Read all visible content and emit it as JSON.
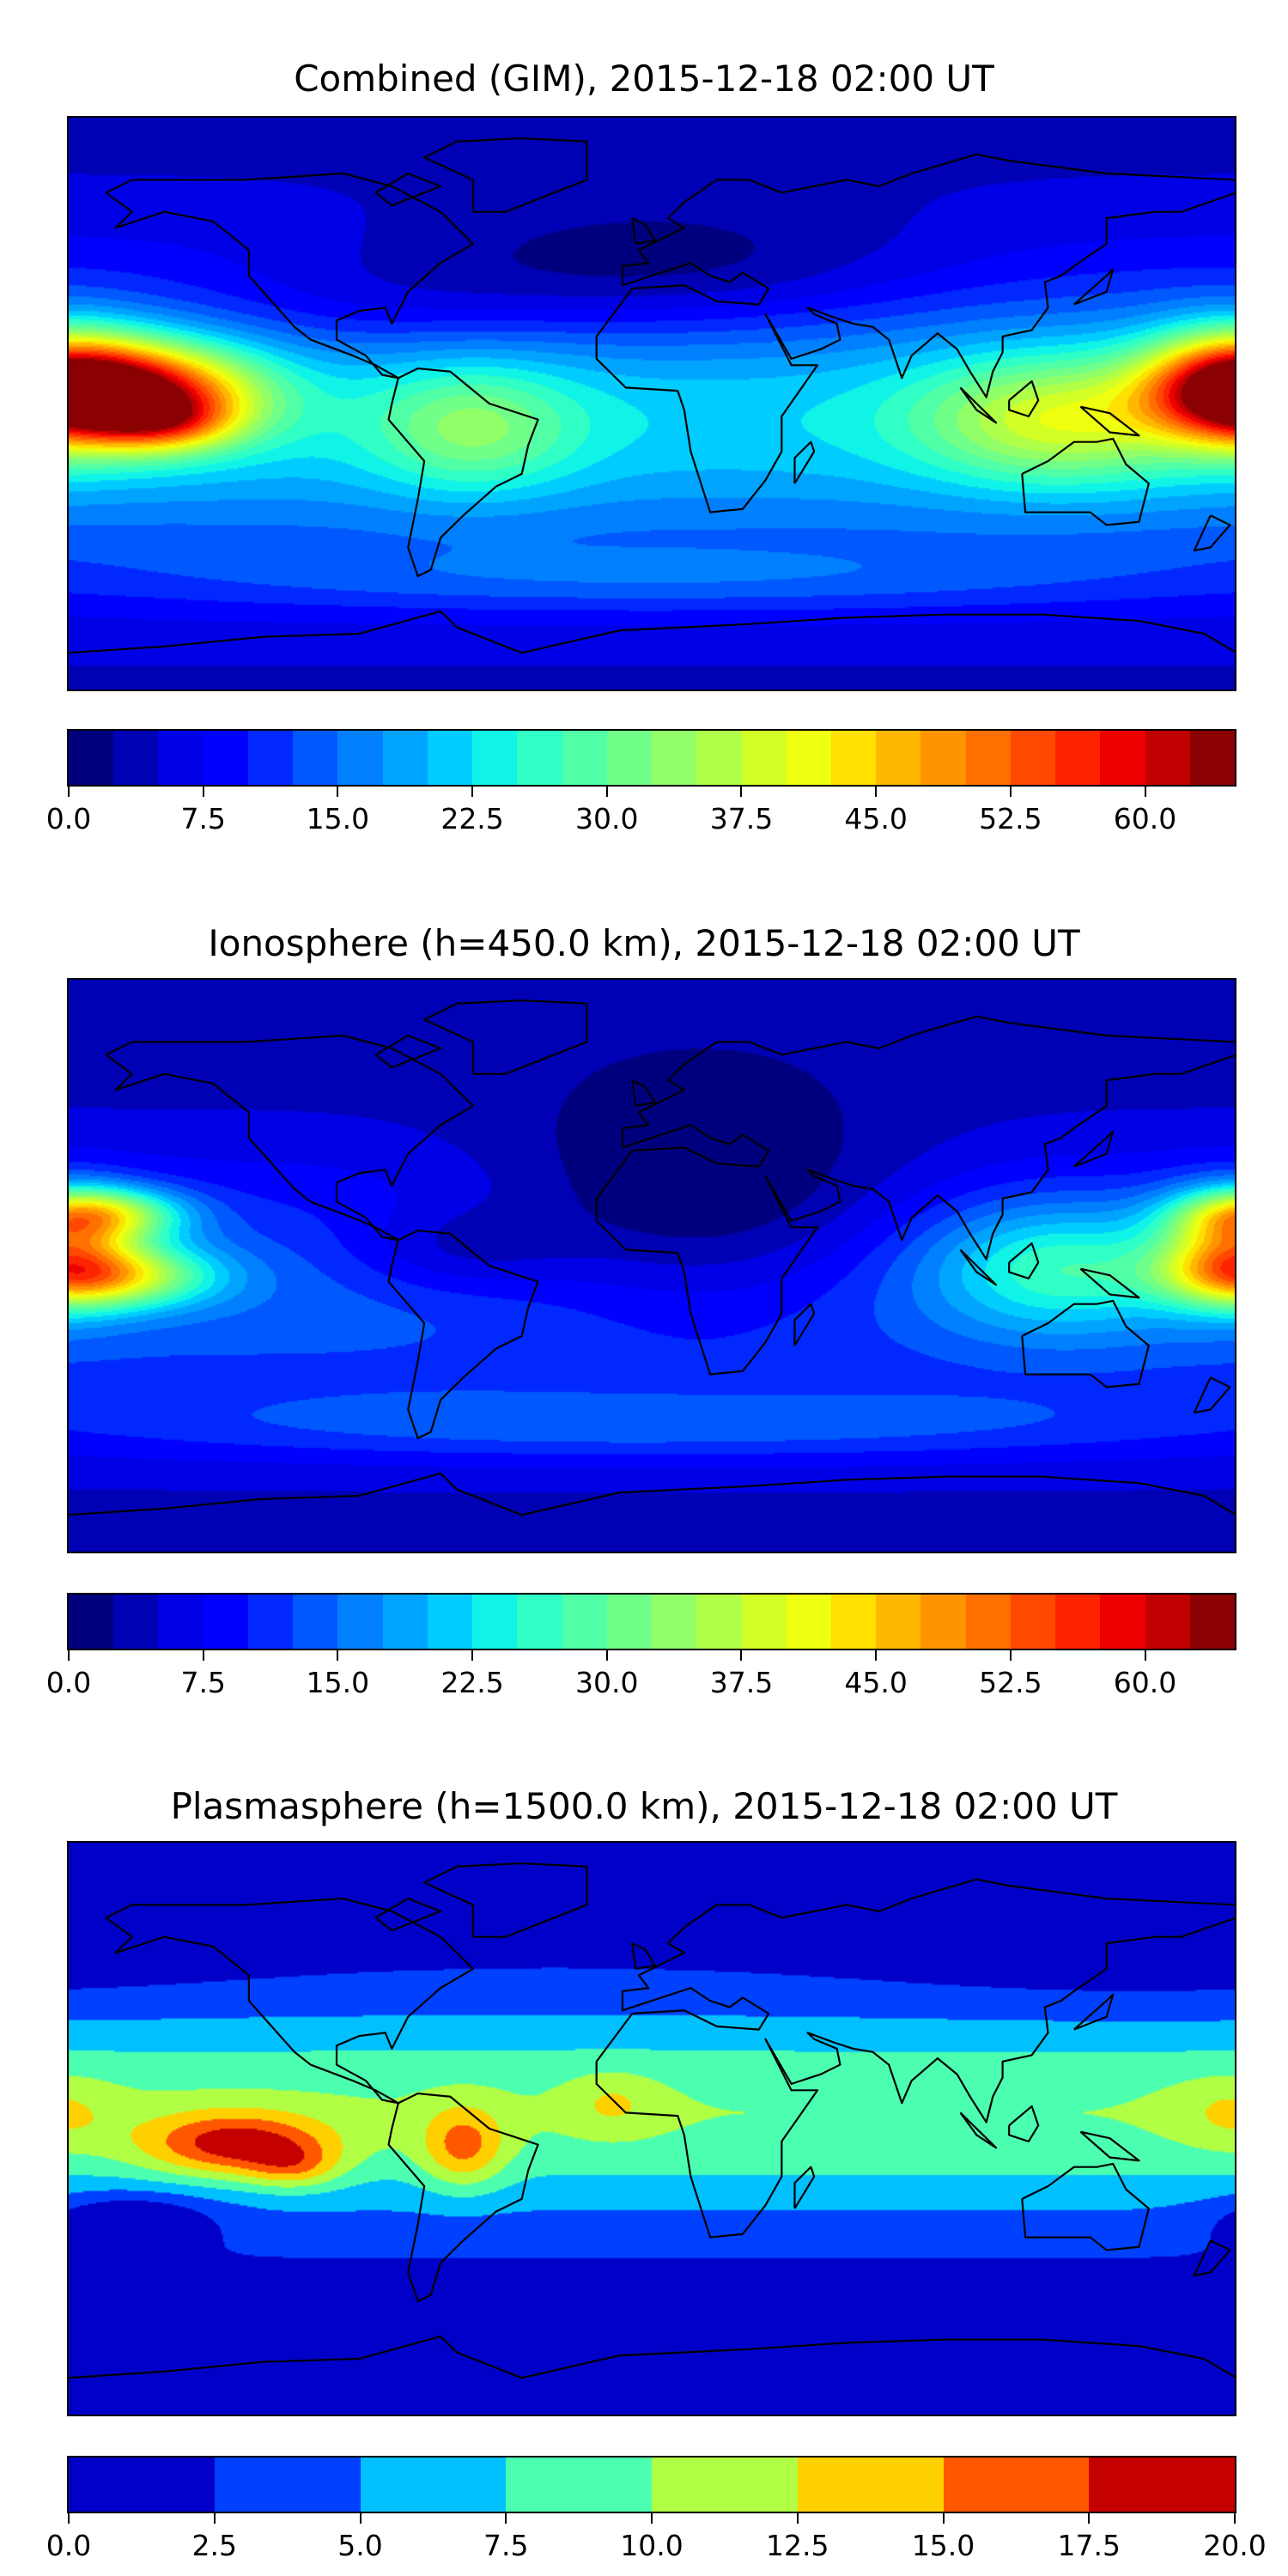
{
  "panels": [
    {
      "title": "Combined (GIM), 2015-12-18 02:00 UT",
      "colorbar": {
        "min": 0,
        "max": 65,
        "step": 2.5,
        "tick_values": [
          0,
          7.5,
          15,
          22.5,
          30,
          37.5,
          45,
          52.5,
          60
        ],
        "tick_labels": [
          "0.0",
          "7.5",
          "15.0",
          "22.5",
          "30.0",
          "37.5",
          "45.0",
          "52.5",
          "60.0"
        ]
      }
    },
    {
      "title": "Ionosphere  (h=450.0 km), 2015-12-18 02:00 UT",
      "colorbar": {
        "min": 0,
        "max": 65,
        "step": 2.5,
        "tick_values": [
          0,
          7.5,
          15,
          22.5,
          30,
          37.5,
          45,
          52.5,
          60
        ],
        "tick_labels": [
          "0.0",
          "7.5",
          "15.0",
          "22.5",
          "30.0",
          "37.5",
          "45.0",
          "52.5",
          "60.0"
        ]
      }
    },
    {
      "title": "Plasmasphere (h=1500.0 km), 2015-12-18 02:00 UT",
      "colorbar": {
        "min": 0,
        "max": 20,
        "step": 2.5,
        "tick_values": [
          0,
          2.5,
          5,
          7.5,
          10,
          12.5,
          15,
          17.5,
          20
        ],
        "tick_labels": [
          "0.0",
          "2.5",
          "5.0",
          "7.5",
          "10.0",
          "12.5",
          "15.0",
          "17.5",
          "20.0"
        ]
      }
    }
  ],
  "chart_data": [
    {
      "type": "heatmap",
      "title": "Combined (GIM), 2015-12-18 02:00 UT",
      "xlim": [
        -180,
        180
      ],
      "ylim": [
        -90,
        90
      ],
      "colormap": [
        "#00007f",
        "#0000b4",
        "#0000e6",
        "#0000ff",
        "#0028ff",
        "#0058ff",
        "#0080ff",
        "#00a4ff",
        "#00ccff",
        "#10f4e8",
        "#30ffc6",
        "#50ffa6",
        "#70ff88",
        "#90ff68",
        "#b0ff48",
        "#d2ff26",
        "#eeff10",
        "#ffe000",
        "#ffb800",
        "#ff9400",
        "#ff7000",
        "#ff4800",
        "#ff2400",
        "#ee0000",
        "#c00000",
        "#8b0000"
      ],
      "base": {
        "polar": 4,
        "equatorial": 22,
        "width_deg": 32,
        "center_lat": -5
      },
      "features": [
        {
          "lon": -160,
          "lat": 3,
          "value": 42,
          "sx": 26,
          "sy": 11
        },
        {
          "lon": -150,
          "lat": -6,
          "value": 14,
          "sx": 15,
          "sy": 6
        },
        {
          "lon": 178,
          "lat": 6,
          "value": 28,
          "sx": 18,
          "sy": 12
        },
        {
          "lon": 125,
          "lat": -5,
          "value": 18,
          "sx": 30,
          "sy": 14
        },
        {
          "lon": -55,
          "lat": -8,
          "value": 12,
          "sx": 22,
          "sy": 14
        },
        {
          "lon": 0,
          "lat": 40,
          "value": -8,
          "sx": 60,
          "sy": 15
        },
        {
          "lon": -90,
          "lat": 30,
          "value": -4,
          "sx": 40,
          "sy": 12
        },
        {
          "lon": 0,
          "lat": -55,
          "value": 6,
          "sx": 120,
          "sy": 8
        }
      ]
    },
    {
      "type": "heatmap",
      "title": "Ionosphere  (h=450.0 km), 2015-12-18 02:00 UT",
      "xlim": [
        -180,
        180
      ],
      "ylim": [
        -90,
        90
      ],
      "colormap": [
        "#00007f",
        "#0000b4",
        "#0000e6",
        "#0000ff",
        "#0028ff",
        "#0058ff",
        "#0080ff",
        "#00a4ff",
        "#00ccff",
        "#10f4e8",
        "#30ffc6",
        "#50ffa6",
        "#70ff88",
        "#90ff68",
        "#b0ff48",
        "#d2ff26",
        "#eeff10",
        "#ffe000",
        "#ffb800",
        "#ff9400",
        "#ff7000",
        "#ff4800",
        "#ff2400",
        "#ee0000",
        "#c00000",
        "#8b0000"
      ],
      "base": {
        "polar": 3,
        "equatorial": 14,
        "width_deg": 32,
        "center_lat": -10
      },
      "features": [
        {
          "lon": -170,
          "lat": 16,
          "value": 26,
          "sx": 18,
          "sy": 6
        },
        {
          "lon": -168,
          "lat": -3,
          "value": 28,
          "sx": 22,
          "sy": 7
        },
        {
          "lon": 178,
          "lat": 6,
          "value": 22,
          "sx": 15,
          "sy": 12
        },
        {
          "lon": 125,
          "lat": 0,
          "value": 14,
          "sx": 28,
          "sy": 14
        },
        {
          "lon": 15,
          "lat": 15,
          "value": -10,
          "sx": 45,
          "sy": 25
        },
        {
          "lon": -60,
          "lat": 5,
          "value": -6,
          "sx": 25,
          "sy": 10
        },
        {
          "lon": 0,
          "lat": -50,
          "value": 7,
          "sx": 120,
          "sy": 8
        }
      ]
    },
    {
      "type": "heatmap",
      "title": "Plasmasphere (h=1500.0 km), 2015-12-18 02:00 UT",
      "xlim": [
        -180,
        180
      ],
      "ylim": [
        -90,
        90
      ],
      "colormap": [
        "#0000c8",
        "#0040ff",
        "#00c0ff",
        "#4cffb0",
        "#b0ff44",
        "#ffd000",
        "#ff5800",
        "#c40000"
      ],
      "base": {
        "polar": 1,
        "equatorial": 10,
        "width_deg": 24,
        "center_lat": 5
      },
      "features": [
        {
          "lon": -128,
          "lat": -5,
          "value": 10,
          "sx": 20,
          "sy": 7
        },
        {
          "lon": -110,
          "lat": -12,
          "value": 5,
          "sx": 10,
          "sy": 5
        },
        {
          "lon": -58,
          "lat": -6,
          "value": 7,
          "sx": 9,
          "sy": 9
        },
        {
          "lon": -12,
          "lat": 8,
          "value": 3,
          "sx": 10,
          "sy": 7
        },
        {
          "lon": 178,
          "lat": 5,
          "value": 3,
          "sx": 12,
          "sy": 8
        },
        {
          "lon": -160,
          "lat": -28,
          "value": -5,
          "sx": 18,
          "sy": 6
        },
        {
          "lon": 150,
          "lat": 60,
          "value": -2,
          "sx": 60,
          "sy": 15
        }
      ]
    }
  ]
}
